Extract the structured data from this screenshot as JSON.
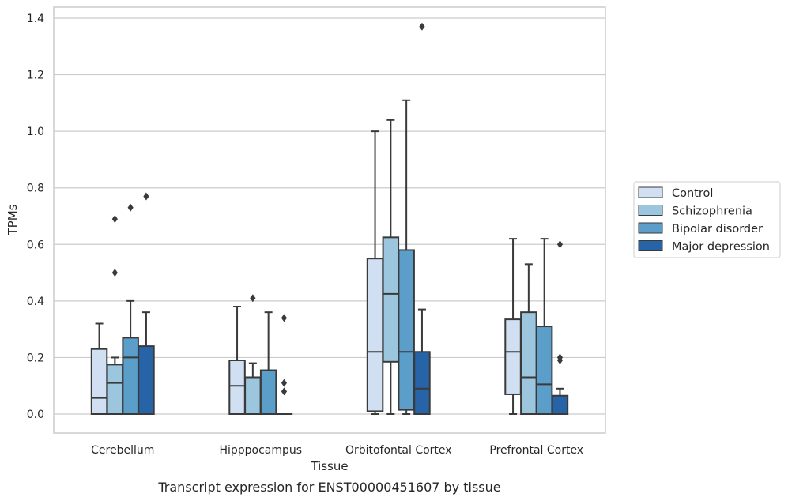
{
  "chart_data": {
    "type": "box",
    "caption": "Transcript expression for ENST00000451607 by tissue",
    "xlabel": "Tissue",
    "ylabel": "TPMs",
    "ylim": [
      -0.065,
      1.44
    ],
    "yticks": [
      "0.0",
      "0.2",
      "0.4",
      "0.6",
      "0.8",
      "1.0",
      "1.2",
      "1.4"
    ],
    "grid": "horizontal",
    "legend_position": "right",
    "categories": [
      "Cerebellum",
      "Hipppocampus",
      "Orbitofontal Cortex",
      "Prefrontal Cortex"
    ],
    "series": [
      {
        "name": "Control",
        "color": "#d0e0f2",
        "boxes": [
          {
            "whisker_low": 0.0,
            "q1": 0.0,
            "median": 0.057,
            "q3": 0.23,
            "whisker_high": 0.32,
            "outliers": []
          },
          {
            "whisker_low": 0.0,
            "q1": 0.0,
            "median": 0.1,
            "q3": 0.19,
            "whisker_high": 0.38,
            "outliers": []
          },
          {
            "whisker_low": 0.0,
            "q1": 0.01,
            "median": 0.22,
            "q3": 0.55,
            "whisker_high": 1.0,
            "outliers": []
          },
          {
            "whisker_low": 0.0,
            "q1": 0.07,
            "median": 0.22,
            "q3": 0.335,
            "whisker_high": 0.62,
            "outliers": []
          }
        ]
      },
      {
        "name": "Schizophrenia",
        "color": "#9cc6de",
        "boxes": [
          {
            "whisker_low": 0.0,
            "q1": 0.0,
            "median": 0.11,
            "q3": 0.175,
            "whisker_high": 0.2,
            "outliers": [
              0.5,
              0.69
            ]
          },
          {
            "whisker_low": 0.0,
            "q1": 0.0,
            "median": 0.13,
            "q3": 0.13,
            "whisker_high": 0.18,
            "outliers": [
              0.41
            ]
          },
          {
            "whisker_low": 0.0,
            "q1": 0.185,
            "median": 0.425,
            "q3": 0.625,
            "whisker_high": 1.04,
            "outliers": []
          },
          {
            "whisker_low": 0.0,
            "q1": 0.0,
            "median": 0.13,
            "q3": 0.36,
            "whisker_high": 0.53,
            "outliers": []
          }
        ]
      },
      {
        "name": "Bipolar disorder",
        "color": "#5a9ec9",
        "boxes": [
          {
            "whisker_low": 0.0,
            "q1": 0.0,
            "median": 0.2,
            "q3": 0.27,
            "whisker_high": 0.4,
            "outliers": [
              0.73
            ]
          },
          {
            "whisker_low": 0.0,
            "q1": 0.0,
            "median": 0.0,
            "q3": 0.155,
            "whisker_high": 0.36,
            "outliers": []
          },
          {
            "whisker_low": 0.0,
            "q1": 0.015,
            "median": 0.22,
            "q3": 0.58,
            "whisker_high": 1.11,
            "outliers": []
          },
          {
            "whisker_low": 0.0,
            "q1": 0.0,
            "median": 0.105,
            "q3": 0.31,
            "whisker_high": 0.62,
            "outliers": []
          }
        ]
      },
      {
        "name": "Major depression",
        "color": "#2764a7",
        "boxes": [
          {
            "whisker_low": 0.0,
            "q1": 0.0,
            "median": 0.0,
            "q3": 0.24,
            "whisker_high": 0.36,
            "outliers": [
              0.77
            ]
          },
          {
            "whisker_low": 0.0,
            "q1": 0.0,
            "median": 0.0,
            "q3": 0.0,
            "whisker_high": 0.0,
            "outliers": [
              0.08,
              0.11,
              0.34
            ]
          },
          {
            "whisker_low": 0.0,
            "q1": 0.0,
            "median": 0.09,
            "q3": 0.22,
            "whisker_high": 0.37,
            "outliers": [
              1.37
            ]
          },
          {
            "whisker_low": 0.0,
            "q1": 0.0,
            "median": 0.0,
            "q3": 0.065,
            "whisker_high": 0.09,
            "outliers": [
              0.19,
              0.2,
              0.6
            ]
          }
        ]
      }
    ]
  },
  "colors": {
    "grid": "#cccccc",
    "frame": "#cccccc",
    "box_edge": "#3a3a3a"
  }
}
